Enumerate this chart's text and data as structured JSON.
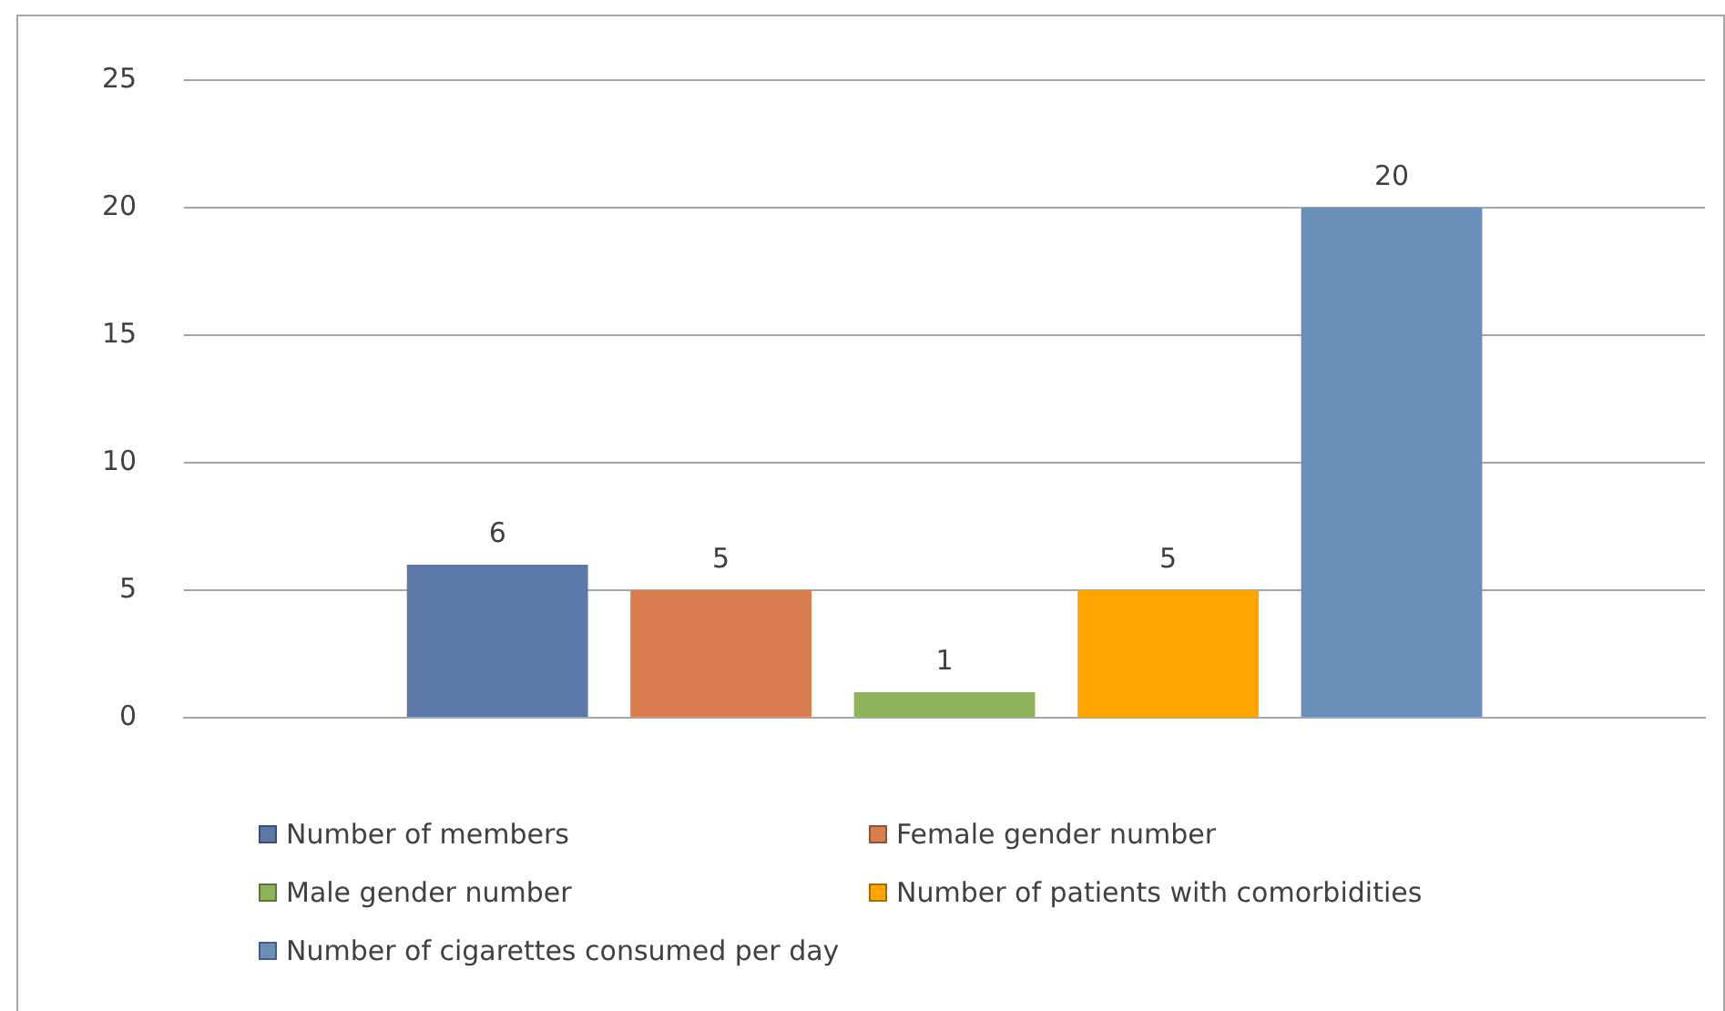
{
  "chart_data": {
    "type": "bar",
    "categories": [
      null
    ],
    "series": [
      {
        "name": "Number of members",
        "color": "#5b78a8",
        "values": [
          6
        ]
      },
      {
        "name": "Female gender number",
        "color": "#d97e4f",
        "values": [
          5
        ]
      },
      {
        "name": "Male gender number",
        "color": "#8db45a",
        "values": [
          1
        ]
      },
      {
        "name": "Number of patients with comorbidities",
        "color": "#ffa502",
        "values": [
          5
        ]
      },
      {
        "name": "Number of cigarettes consumed per day",
        "color": "#6b8fbb",
        "values": [
          20
        ]
      }
    ],
    "ylim": [
      0,
      25
    ],
    "yticks": [
      0,
      5,
      10,
      15,
      20,
      25
    ],
    "grid": "y",
    "legend": "bottom",
    "data_labels": true
  }
}
